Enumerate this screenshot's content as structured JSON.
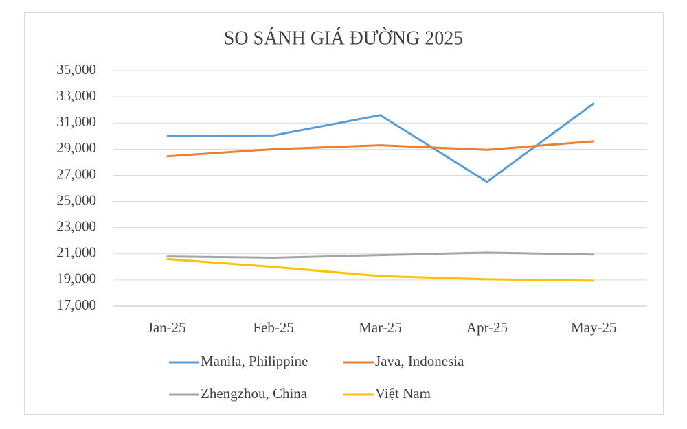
{
  "chart_data": {
    "type": "line",
    "title": "SO SÁNH GIÁ ĐƯỜNG 2025",
    "categories": [
      "Jan-25",
      "Feb-25",
      "Mar-25",
      "Apr-25",
      "May-25"
    ],
    "series": [
      {
        "name": "Manila, Philippine",
        "color": "#5b9bd5",
        "values": [
          30000,
          30050,
          31600,
          26500,
          32500
        ]
      },
      {
        "name": "Java, Indonesia",
        "color": "#ed7d31",
        "values": [
          28450,
          29000,
          29300,
          28950,
          29600
        ]
      },
      {
        "name": "Zhengzhou, China",
        "color": "#a5a5a5",
        "values": [
          20800,
          20700,
          20900,
          21100,
          20950
        ]
      },
      {
        "name": "Việt Nam",
        "color": "#ffc000",
        "values": [
          20600,
          20000,
          19300,
          19050,
          18950
        ]
      }
    ],
    "ylim": [
      17000,
      35000
    ],
    "yticks": [
      {
        "value": 17000,
        "label": "17,000"
      },
      {
        "value": 19000,
        "label": "19,000"
      },
      {
        "value": 21000,
        "label": "21,000"
      },
      {
        "value": 23000,
        "label": "23,000"
      },
      {
        "value": 25000,
        "label": "25,000"
      },
      {
        "value": 27000,
        "label": "27,000"
      },
      {
        "value": 29000,
        "label": "29,000"
      },
      {
        "value": 31000,
        "label": "31,000"
      },
      {
        "value": 33000,
        "label": "33,000"
      },
      {
        "value": 35000,
        "label": "35,000"
      }
    ],
    "grid": true,
    "legend": "bottom"
  }
}
